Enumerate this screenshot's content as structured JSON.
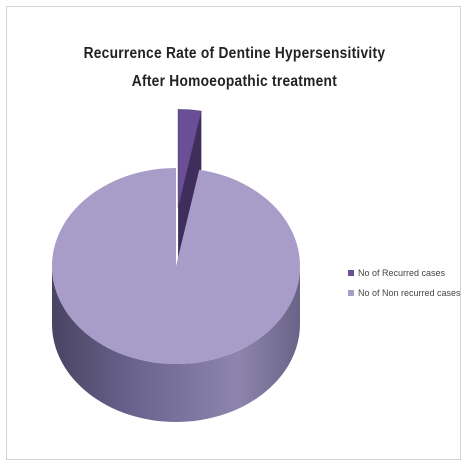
{
  "chart_data": {
    "type": "pie",
    "title_lines": [
      "Recurrence Rate of Dentine Hypersensitivity",
      "After Homoeopathic treatment"
    ],
    "slices": [
      {
        "label": "No of Recurred cases",
        "value": 3,
        "color": "#6a4f96",
        "side_color": "#3f2d5c",
        "exploded": true
      },
      {
        "label": "No of Non recurred cases",
        "value": 97,
        "color": "#a89cc9",
        "side_color": "#6f6690",
        "exploded": false
      }
    ],
    "legend_position": "right",
    "style": "3d"
  }
}
